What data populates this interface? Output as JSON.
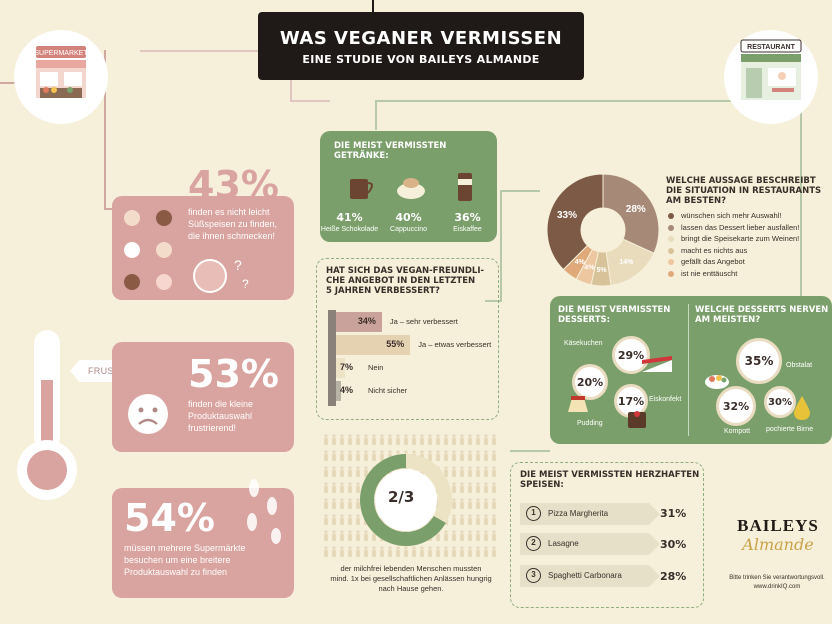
{
  "title": {
    "line1": "WAS VEGANER VERMISSEN",
    "line2": "EINE STUDIE VON BAILEYS ALMANDE"
  },
  "supermarket": {
    "label": "SUPERMARKET"
  },
  "restaurant": {
    "label": "RESTAURANT"
  },
  "stat43": {
    "value": "43%",
    "text1": "finden es nicht leicht",
    "text2": "Süßspeisen zu finden,",
    "text3": "die ihnen schmecken!"
  },
  "frustmometer": {
    "label": "FRUSTMOMETER"
  },
  "stat53": {
    "value": "53%",
    "text1": "finden die kleine",
    "text2": "Produktauswahl",
    "text3": "frustrierend!"
  },
  "stat54": {
    "value": "54%",
    "text1": "müssen mehrere Supermärkte",
    "text2": "besuchen um eine breitere",
    "text3": "Produktauswahl zu finden"
  },
  "drinks": {
    "title1": "DIE MEIST VERMISSTEN",
    "title2": "GETRÄNKE:",
    "items": [
      {
        "pct": "41%",
        "name": "Heiße Schokolade"
      },
      {
        "pct": "40%",
        "name": "Cappuccino"
      },
      {
        "pct": "36%",
        "name": "Eiskaffee"
      }
    ]
  },
  "survey": {
    "title1": "HAT SICH DAS VEGAN-FREUNDLI-",
    "title2": "CHE ANGEBOT IN DEN LETZTEN",
    "title3": "5 JAHREN VERBESSERT?",
    "bars": [
      {
        "pct": "34%",
        "value": 34,
        "label": "Ja – sehr verbessert",
        "color": "#c9a39b"
      },
      {
        "pct": "55%",
        "value": 55,
        "label": "Ja – etwas verbessert",
        "color": "#e5d2b0"
      },
      {
        "pct": "7%",
        "value": 7,
        "label": "Nein",
        "color": "#efe3c7"
      },
      {
        "pct": "4%",
        "value": 4,
        "label": "Nicht sicher",
        "color": "#b9b3a6"
      }
    ]
  },
  "restaurant_q": {
    "title1": "WELCHE AUSSAGE BESCHREIBT",
    "title2": "DIE SITUATION IN RESTAURANTS",
    "title3": "AM BESTEN?",
    "slices": [
      {
        "label": "33%",
        "value": 33,
        "color": "#7d5a45",
        "legend": "wünschen sich mehr Auswahl!"
      },
      {
        "label": "28%",
        "value": 28,
        "color": "#a68a77",
        "legend": "lassen das Dessert lieber ausfallen!"
      },
      {
        "label": "14%",
        "value": 14,
        "color": "#e9dcbd",
        "legend": "bringt die Speisekarte zum Weinen!"
      },
      {
        "label": "5%",
        "value": 5,
        "color": "#d7c29a",
        "legend": "macht es nichts aus"
      },
      {
        "label": "4%",
        "value": 4,
        "color": "#edc7a0",
        "legend": "gefällt das Angebot"
      },
      {
        "label": "4%",
        "value": 4,
        "color": "#e0a97a",
        "legend": "ist nie enttäuscht"
      }
    ]
  },
  "desserts": {
    "title1": "DIE MEIST VERMISSTEN",
    "title2": "DESSERTS:",
    "items": [
      {
        "pct": "29%",
        "name": "Käsekuchen"
      },
      {
        "pct": "20%",
        "name": "Pudding"
      },
      {
        "pct": "17%",
        "name": "Eiskonfekt"
      }
    ]
  },
  "annoying": {
    "title1": "WELCHE DESSERTS NERVEN",
    "title2": "AM MEISTEN?",
    "items": [
      {
        "pct": "35%",
        "name": "Obstalat"
      },
      {
        "pct": "32%",
        "name": "Kompott"
      },
      {
        "pct": "30%",
        "name": "pochierte Birne"
      }
    ]
  },
  "donut": {
    "label": "2/3",
    "value": 0.667,
    "text1": "der milchfrei lebenden Menschen mussten",
    "text2": "mind. 1x bei gesellschaftlichen Anlässen hungrig",
    "text3": "nach Hause gehen."
  },
  "savory": {
    "title1": "DIE MEIST VERMISSTEN HERZHAFTEN",
    "title2": "SPEISEN:",
    "items": [
      {
        "rank": "1",
        "name": "Pizza Margherita",
        "pct": "31%"
      },
      {
        "rank": "2",
        "name": "Lasagne",
        "pct": "30%"
      },
      {
        "rank": "3",
        "name": "Spaghetti Carbonara",
        "pct": "28%"
      }
    ]
  },
  "brand": {
    "name": "BAILEYS",
    "sub": "Almande",
    "note1": "Bitte trinken Sie verantwortungsvoll.",
    "note2": "www.drinkIQ.com"
  },
  "colors": {
    "rose": "#d9a39f",
    "green": "#7a9f6b",
    "dark": "#1f1a17",
    "background": "#f6efd9"
  }
}
